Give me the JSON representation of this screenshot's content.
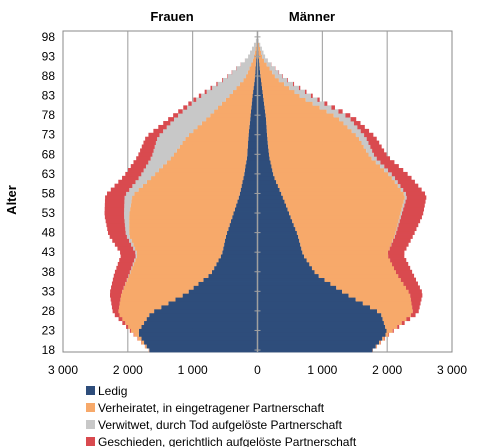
{
  "chart_data": {
    "type": "bar",
    "orientation": "horizontal",
    "stacked": true,
    "diverging": true,
    "panel_labels": [
      "Frauen",
      "Männer"
    ],
    "ylabel": "Alter",
    "y_range": [
      18,
      100
    ],
    "y_tick_labels": [
      "18",
      "23",
      "28",
      "33",
      "38",
      "43",
      "48",
      "53",
      "58",
      "63",
      "68",
      "73",
      "78",
      "83",
      "88",
      "93",
      "98"
    ],
    "x_range": [
      -3000,
      3000
    ],
    "x_tick_labels": [
      "3 000",
      "2 000",
      "1 000",
      "0",
      "1 000",
      "2 000",
      "3 000"
    ],
    "grid": "vertical",
    "legend_position": "bottom",
    "series": [
      {
        "name": "Ledig",
        "color": "#2e4d7b"
      },
      {
        "name": "Verheiratet, in eingetragener Partnerschaft",
        "color": "#f7a96a"
      },
      {
        "name": "Verwitwet, durch Tod aufgelöste Partnerschaft",
        "color": "#c8c8c8"
      },
      {
        "name": "Geschieden, gerichtlich aufgelöste Partnerschaft",
        "color": "#d94a4f"
      }
    ],
    "ages": [
      18,
      23,
      28,
      33,
      38,
      43,
      48,
      53,
      58,
      63,
      68,
      73,
      78,
      83,
      88,
      93,
      98
    ],
    "frauen": {
      "Ledig": [
        1650,
        1850,
        1650,
        1100,
        720,
        550,
        480,
        380,
        280,
        210,
        160,
        140,
        110,
        80,
        40,
        20,
        0
      ],
      "Verheiratet": [
        0,
        80,
        500,
        1000,
        1250,
        1300,
        1500,
        1600,
        1650,
        1400,
        1150,
        950,
        650,
        380,
        150,
        40,
        0
      ],
      "Verwitwet": [
        0,
        0,
        0,
        0,
        10,
        20,
        50,
        80,
        120,
        200,
        320,
        450,
        500,
        450,
        300,
        100,
        10
      ],
      "Geschieden": [
        0,
        10,
        80,
        180,
        230,
        230,
        270,
        300,
        300,
        250,
        220,
        180,
        80,
        40,
        10,
        0,
        0
      ]
    },
    "maenner": {
      "Ledig": [
        1750,
        2000,
        1900,
        1350,
        900,
        700,
        620,
        500,
        380,
        250,
        180,
        150,
        130,
        90,
        50,
        20,
        0
      ],
      "Verheiratet": [
        0,
        50,
        500,
        1000,
        1250,
        1300,
        1500,
        1700,
        1900,
        1800,
        1550,
        1400,
        1100,
        600,
        240,
        60,
        0
      ],
      "Verwitwet": [
        0,
        0,
        0,
        0,
        0,
        0,
        10,
        20,
        30,
        50,
        80,
        120,
        180,
        180,
        120,
        50,
        5
      ],
      "Geschieden": [
        0,
        10,
        80,
        200,
        250,
        250,
        280,
        330,
        300,
        250,
        200,
        150,
        80,
        30,
        10,
        0,
        0
      ]
    }
  }
}
